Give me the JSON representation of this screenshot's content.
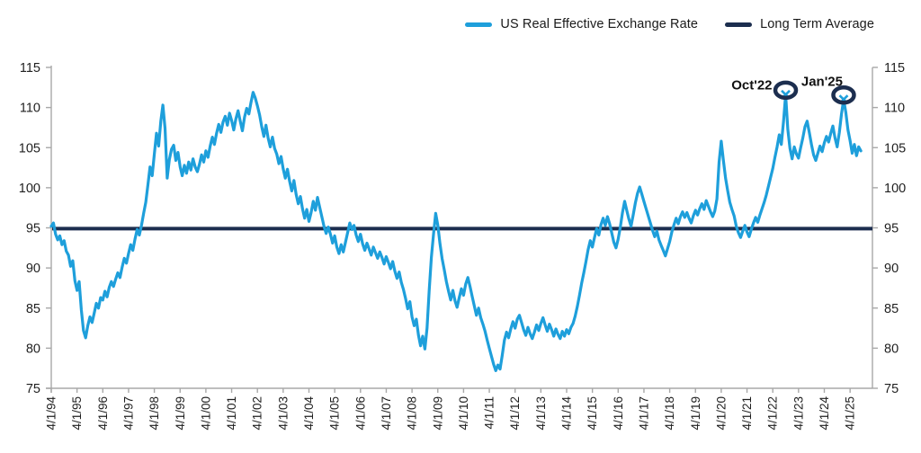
{
  "colors": {
    "reer_line": "#1E9FDB",
    "long_term_average_line": "#1C2E4F",
    "axis": "#A8A8A8",
    "tick_label": "#1f1f1f",
    "annotation_text": "#111111",
    "background": "#FFFFFF"
  },
  "legend": {
    "position": "top-right"
  },
  "chart_data": {
    "type": "line",
    "title": "",
    "xlabel": "",
    "ylabel": "",
    "ylim": [
      75,
      115
    ],
    "grid": false,
    "legend_position": "top",
    "y_ticks": [
      115,
      110,
      105,
      100,
      95,
      90,
      85,
      80,
      75
    ],
    "x_tick_labels": [
      "4/1/94",
      "4/1/95",
      "4/1/96",
      "4/1/97",
      "4/1/98",
      "4/1/99",
      "4/1/00",
      "4/1/01",
      "4/1/02",
      "4/1/03",
      "4/1/04",
      "4/1/05",
      "4/1/06",
      "4/1/07",
      "4/1/08",
      "4/1/09",
      "4/1/10",
      "4/1/11",
      "4/1/12",
      "4/1/13",
      "4/1/14",
      "4/1/15",
      "4/1/16",
      "4/1/17",
      "4/1/18",
      "4/1/19",
      "4/1/20",
      "4/1/21",
      "4/1/22",
      "4/1/23",
      "4/1/24",
      "4/1/25"
    ],
    "series": [
      {
        "name": "US Real Effective Exchange Rate",
        "color": "#1E9FDB",
        "frequency": "monthly",
        "start": "1994-04",
        "values": [
          95.2,
          95.6,
          94.2,
          93.5,
          94.0,
          92.9,
          93.4,
          92.1,
          91.6,
          90.2,
          90.9,
          88.4,
          87.2,
          88.3,
          84.8,
          82.2,
          81.3,
          82.8,
          83.9,
          83.2,
          84.4,
          85.6,
          85.0,
          86.3,
          86.0,
          87.1,
          86.4,
          87.6,
          88.3,
          87.7,
          88.6,
          89.4,
          88.8,
          90.1,
          91.2,
          90.6,
          91.8,
          92.9,
          92.2,
          93.6,
          94.8,
          94.1,
          95.3,
          96.8,
          98.2,
          100.3,
          102.6,
          101.5,
          104.2,
          106.8,
          105.2,
          108.3,
          110.3,
          107.4,
          101.2,
          103.5,
          104.8,
          105.3,
          103.4,
          104.4,
          102.6,
          101.5,
          102.8,
          101.8,
          103.2,
          102.2,
          103.6,
          102.6,
          102.0,
          102.9,
          104.1,
          103.2,
          104.6,
          103.8,
          105.2,
          106.3,
          105.4,
          106.8,
          107.9,
          106.9,
          108.2,
          108.9,
          107.8,
          109.3,
          108.4,
          107.2,
          108.6,
          109.6,
          108.3,
          107.1,
          108.8,
          109.9,
          109.2,
          110.6,
          111.9,
          111.2,
          110.2,
          109.1,
          107.6,
          106.4,
          107.8,
          106.2,
          105.1,
          106.3,
          104.9,
          104.2,
          103.0,
          103.9,
          102.4,
          101.2,
          102.3,
          100.8,
          99.6,
          100.9,
          99.2,
          98.0,
          98.9,
          97.4,
          96.2,
          97.3,
          95.8,
          96.9,
          98.3,
          97.2,
          98.8,
          97.6,
          96.4,
          95.2,
          94.3,
          95.1,
          94.2,
          93.1,
          94.0,
          92.6,
          91.8,
          92.9,
          92.0,
          93.2,
          94.4,
          95.6,
          94.8,
          95.3,
          94.1,
          93.3,
          94.2,
          93.0,
          92.2,
          93.1,
          92.4,
          91.6,
          92.6,
          91.9,
          91.2,
          92.0,
          91.3,
          90.5,
          91.4,
          90.7,
          89.9,
          90.8,
          89.6,
          88.7,
          89.5,
          88.2,
          87.3,
          86.2,
          84.9,
          85.8,
          83.9,
          82.8,
          83.6,
          81.6,
          80.3,
          81.5,
          79.9,
          82.5,
          87.2,
          91.3,
          94.2,
          96.8,
          95.3,
          93.1,
          91.2,
          89.8,
          88.3,
          87.1,
          86.0,
          87.2,
          85.9,
          85.1,
          86.3,
          87.4,
          86.6,
          88.0,
          88.8,
          87.7,
          86.5,
          85.3,
          84.1,
          85.0,
          83.8,
          83.0,
          82.1,
          81.0,
          80.0,
          79.0,
          78.0,
          77.2,
          77.9,
          77.4,
          79.1,
          81.0,
          82.0,
          81.3,
          82.4,
          83.3,
          82.5,
          83.6,
          84.1,
          83.2,
          82.3,
          81.6,
          82.6,
          81.8,
          81.2,
          82.0,
          82.9,
          82.2,
          83.1,
          83.8,
          82.9,
          82.1,
          83.0,
          82.3,
          81.5,
          82.4,
          81.7,
          81.2,
          82.1,
          81.5,
          82.3,
          81.8,
          82.6,
          83.1,
          84.0,
          85.2,
          86.6,
          88.1,
          89.4,
          90.8,
          92.3,
          93.4,
          92.6,
          93.8,
          94.9,
          94.1,
          95.4,
          96.2,
          95.3,
          96.4,
          95.5,
          94.4,
          93.2,
          92.5,
          93.6,
          95.1,
          96.9,
          98.3,
          97.2,
          96.1,
          95.2,
          96.6,
          98.1,
          99.3,
          100.1,
          99.2,
          98.3,
          97.4,
          96.5,
          95.6,
          94.7,
          93.9,
          94.6,
          93.5,
          92.8,
          92.2,
          91.5,
          92.4,
          93.3,
          94.5,
          95.4,
          96.2,
          95.5,
          96.4,
          97.0,
          96.3,
          96.9,
          96.2,
          95.6,
          96.5,
          97.2,
          96.6,
          97.4,
          98.0,
          97.3,
          98.4,
          97.7,
          97.0,
          96.4,
          97.1,
          98.6,
          103.2,
          105.8,
          103.4,
          101.2,
          99.6,
          98.2,
          97.3,
          96.5,
          95.2,
          94.4,
          93.8,
          94.6,
          95.3,
          94.5,
          93.9,
          94.8,
          95.6,
          96.3,
          95.7,
          96.6,
          97.4,
          98.2,
          99.1,
          100.2,
          101.3,
          102.4,
          103.8,
          105.1,
          106.6,
          105.4,
          108.2,
          111.6,
          107.3,
          104.9,
          103.6,
          105.1,
          104.2,
          103.7,
          105.0,
          106.2,
          107.6,
          108.3,
          106.9,
          105.4,
          104.1,
          103.4,
          104.3,
          105.2,
          104.5,
          105.6,
          106.4,
          105.7,
          106.8,
          107.7,
          106.2,
          105.1,
          106.9,
          109.2,
          111.0,
          109.4,
          107.2,
          105.9,
          104.3,
          105.4,
          104.0,
          105.1,
          104.6
        ]
      },
      {
        "name": "Long Term Average",
        "color": "#1C2E4F",
        "value": 94.9
      }
    ],
    "annotations": [
      {
        "label": "Oct'22",
        "month": "2022-10",
        "value": 111.6,
        "marker": "circled-x"
      },
      {
        "label": "Jan'25",
        "month": "2025-01",
        "value": 111.0,
        "marker": "circled-x"
      }
    ]
  }
}
